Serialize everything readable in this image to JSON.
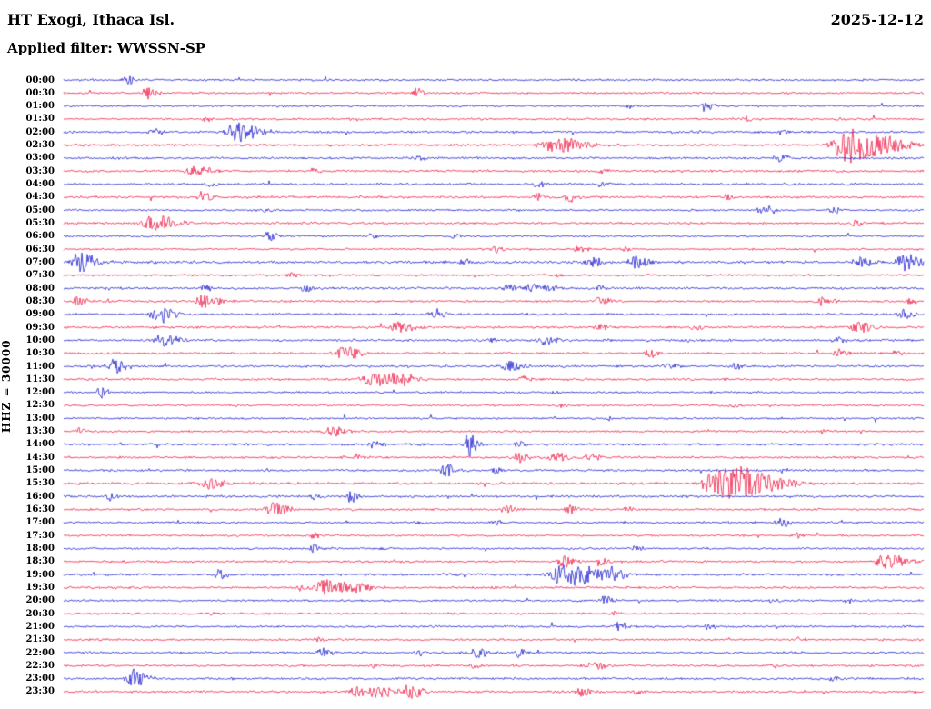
{
  "header": {
    "station_title": "HT Exogi, Ithaca Isl.",
    "date": "2025-12-12",
    "filter_label": "Applied filter: WWSSN-SP"
  },
  "axis": {
    "scale_label": "HHZ = 30000"
  },
  "palette": {
    "blue": "#1212cc",
    "red": "#ee0f3c",
    "text": "#000000",
    "background": "#ffffff"
  },
  "chart_data": {
    "type": "line",
    "title": "24-hour helicorder seismogram, HT Exogi, Ithaca Isl., 2025-12-12",
    "channel": "HHZ",
    "scale": 30000,
    "filter": "WWSSN-SP",
    "row_duration_minutes": 30,
    "color_rule": "rows alternate blue (:00) and red (:30)",
    "event_format": "[center_x_px, amplitude_px, rise_width, decay_width]",
    "rows": [
      {
        "t": "00:00",
        "color": "blue",
        "noise": 0.8,
        "events": [
          [
            140,
            7,
            2,
            4
          ]
        ]
      },
      {
        "t": "00:30",
        "color": "red",
        "noise": 0.8,
        "events": [
          [
            162,
            9,
            2,
            5
          ],
          [
            458,
            6,
            2,
            4
          ]
        ]
      },
      {
        "t": "01:00",
        "color": "blue",
        "noise": 0.8,
        "events": [
          [
            690,
            3,
            2,
            4
          ],
          [
            775,
            7,
            2,
            5
          ]
        ]
      },
      {
        "t": "01:30",
        "color": "red",
        "noise": 0.8,
        "events": [
          [
            225,
            3,
            2,
            4
          ],
          [
            820,
            4,
            2,
            4
          ],
          [
            920,
            3,
            2,
            4
          ]
        ]
      },
      {
        "t": "02:00",
        "color": "blue",
        "noise": 0.9,
        "events": [
          [
            170,
            5,
            2,
            4
          ],
          [
            262,
            11,
            6,
            12
          ],
          [
            860,
            3,
            2,
            4
          ]
        ]
      },
      {
        "t": "02:30",
        "color": "red",
        "noise": 1.0,
        "events": [
          [
            610,
            9,
            7,
            16
          ],
          [
            930,
            20,
            6,
            25
          ]
        ]
      },
      {
        "t": "03:00",
        "color": "blue",
        "noise": 0.9,
        "events": [
          [
            460,
            3,
            2,
            4
          ],
          [
            855,
            5,
            2,
            5
          ]
        ]
      },
      {
        "t": "03:30",
        "color": "red",
        "noise": 0.9,
        "events": [
          [
            215,
            6,
            5,
            10
          ],
          [
            345,
            3,
            2,
            4
          ],
          [
            660,
            3,
            2,
            4
          ]
        ]
      },
      {
        "t": "04:00",
        "color": "blue",
        "noise": 0.9,
        "events": [
          [
            230,
            4,
            2,
            5
          ],
          [
            590,
            4,
            2,
            5
          ],
          [
            660,
            3,
            2,
            4
          ]
        ]
      },
      {
        "t": "04:30",
        "color": "red",
        "noise": 0.9,
        "events": [
          [
            225,
            7,
            3,
            6
          ],
          [
            590,
            5,
            2,
            5
          ],
          [
            625,
            6,
            2,
            5
          ],
          [
            800,
            4,
            2,
            4
          ]
        ]
      },
      {
        "t": "05:00",
        "color": "blue",
        "noise": 0.8,
        "events": [
          [
            290,
            3,
            2,
            4
          ],
          [
            840,
            6,
            3,
            6
          ],
          [
            915,
            4,
            2,
            4
          ]
        ]
      },
      {
        "t": "05:30",
        "color": "red",
        "noise": 0.9,
        "events": [
          [
            170,
            9,
            6,
            12
          ],
          [
            940,
            4,
            2,
            5
          ]
        ]
      },
      {
        "t": "06:00",
        "color": "blue",
        "noise": 0.8,
        "events": [
          [
            295,
            6,
            2,
            5
          ],
          [
            410,
            3,
            2,
            4
          ],
          [
            500,
            3,
            2,
            4
          ]
        ]
      },
      {
        "t": "06:30",
        "color": "red",
        "noise": 0.8,
        "events": [
          [
            545,
            4,
            2,
            5
          ],
          [
            635,
            5,
            2,
            5
          ],
          [
            685,
            3,
            2,
            4
          ]
        ]
      },
      {
        "t": "07:00",
        "color": "blue",
        "noise": 1.1,
        "events": [
          [
            85,
            12,
            4,
            10
          ],
          [
            510,
            4,
            2,
            4
          ],
          [
            650,
            6,
            3,
            6
          ],
          [
            700,
            7,
            4,
            8
          ],
          [
            945,
            7,
            4,
            8
          ],
          [
            995,
            11,
            4,
            9
          ]
        ]
      },
      {
        "t": "07:30",
        "color": "red",
        "noise": 0.9,
        "events": [
          [
            320,
            3,
            2,
            4
          ],
          [
            610,
            3,
            2,
            4
          ]
        ]
      },
      {
        "t": "08:00",
        "color": "blue",
        "noise": 0.9,
        "events": [
          [
            225,
            5,
            2,
            4
          ],
          [
            335,
            6,
            2,
            4
          ],
          [
            560,
            5,
            3,
            6
          ],
          [
            585,
            5,
            3,
            6
          ],
          [
            605,
            4,
            2,
            5
          ],
          [
            660,
            4,
            2,
            4
          ]
        ]
      },
      {
        "t": "08:30",
        "color": "red",
        "noise": 0.9,
        "events": [
          [
            85,
            6,
            2,
            5
          ],
          [
            225,
            8,
            4,
            8
          ],
          [
            660,
            7,
            3,
            6
          ],
          [
            905,
            6,
            3,
            6
          ],
          [
            1002,
            4,
            2,
            4
          ]
        ]
      },
      {
        "t": "09:00",
        "color": "blue",
        "noise": 0.9,
        "events": [
          [
            175,
            9,
            4,
            9
          ],
          [
            480,
            6,
            3,
            5
          ],
          [
            995,
            6,
            3,
            6
          ]
        ]
      },
      {
        "t": "09:30",
        "color": "red",
        "noise": 0.9,
        "events": [
          [
            440,
            7,
            5,
            9
          ],
          [
            660,
            5,
            2,
            5
          ],
          [
            765,
            4,
            2,
            4
          ],
          [
            945,
            6,
            4,
            8
          ]
        ]
      },
      {
        "t": "10:00",
        "color": "blue",
        "noise": 0.9,
        "events": [
          [
            180,
            7,
            5,
            9
          ],
          [
            540,
            4,
            2,
            4
          ],
          [
            600,
            6,
            4,
            7
          ],
          [
            755,
            3,
            2,
            4
          ],
          [
            920,
            4,
            2,
            4
          ]
        ]
      },
      {
        "t": "10:30",
        "color": "red",
        "noise": 0.9,
        "events": [
          [
            380,
            8,
            5,
            8
          ],
          [
            715,
            5,
            3,
            5
          ],
          [
            920,
            5,
            2,
            5
          ],
          [
            985,
            4,
            2,
            4
          ]
        ]
      },
      {
        "t": "11:00",
        "color": "blue",
        "noise": 0.9,
        "events": [
          [
            125,
            7,
            4,
            8
          ],
          [
            560,
            6,
            4,
            8
          ],
          [
            735,
            5,
            3,
            5
          ],
          [
            810,
            4,
            2,
            4
          ]
        ]
      },
      {
        "t": "11:30",
        "color": "red",
        "noise": 0.9,
        "events": [
          [
            408,
            8,
            6,
            10
          ],
          [
            438,
            7,
            5,
            10
          ],
          [
            575,
            4,
            2,
            4
          ]
        ]
      },
      {
        "t": "12:00",
        "color": "blue",
        "noise": 0.8,
        "events": [
          [
            110,
            6,
            2,
            5
          ],
          [
            610,
            2,
            2,
            4
          ]
        ]
      },
      {
        "t": "12:30",
        "color": "red",
        "noise": 0.8,
        "events": [
          [
            615,
            3,
            2,
            4
          ],
          [
            805,
            3,
            2,
            4
          ]
        ]
      },
      {
        "t": "13:00",
        "color": "blue",
        "noise": 0.8,
        "events": [
          [
            670,
            3,
            2,
            4
          ],
          [
            855,
            3,
            2,
            4
          ]
        ]
      },
      {
        "t": "13:30",
        "color": "red",
        "noise": 0.8,
        "events": [
          [
            88,
            4,
            2,
            4
          ],
          [
            365,
            6,
            4,
            7
          ],
          [
            905,
            3,
            2,
            4
          ]
        ]
      },
      {
        "t": "14:00",
        "color": "blue",
        "noise": 0.9,
        "events": [
          [
            410,
            5,
            2,
            5
          ],
          [
            515,
            13,
            2,
            5
          ],
          [
            570,
            4,
            2,
            4
          ]
        ]
      },
      {
        "t": "14:30",
        "color": "red",
        "noise": 0.9,
        "events": [
          [
            390,
            4,
            2,
            4
          ],
          [
            570,
            6,
            4,
            6
          ],
          [
            612,
            6,
            4,
            8
          ],
          [
            650,
            5,
            3,
            6
          ]
        ]
      },
      {
        "t": "15:00",
        "color": "blue",
        "noise": 0.9,
        "events": [
          [
            490,
            7,
            3,
            6
          ],
          [
            545,
            4,
            2,
            4
          ],
          [
            860,
            3,
            2,
            4
          ]
        ]
      },
      {
        "t": "15:30",
        "color": "red",
        "noise": 1.0,
        "events": [
          [
            230,
            7,
            4,
            8
          ],
          [
            790,
            18,
            7,
            14
          ],
          [
            822,
            11,
            8,
            22
          ]
        ]
      },
      {
        "t": "16:00",
        "color": "blue",
        "noise": 0.9,
        "events": [
          [
            120,
            4,
            2,
            4
          ],
          [
            345,
            4,
            2,
            4
          ],
          [
            385,
            8,
            2,
            5
          ]
        ]
      },
      {
        "t": "16:30",
        "color": "red",
        "noise": 0.9,
        "events": [
          [
            300,
            7,
            4,
            8
          ],
          [
            555,
            5,
            2,
            5
          ],
          [
            625,
            5,
            2,
            5
          ],
          [
            690,
            3,
            2,
            4
          ]
        ]
      },
      {
        "t": "17:00",
        "color": "blue",
        "noise": 0.8,
        "events": [
          [
            460,
            3,
            2,
            4
          ],
          [
            545,
            3,
            2,
            4
          ],
          [
            860,
            6,
            3,
            5
          ]
        ]
      },
      {
        "t": "17:30",
        "color": "red",
        "noise": 0.8,
        "events": [
          [
            345,
            3,
            2,
            4
          ],
          [
            875,
            4,
            2,
            4
          ]
        ]
      },
      {
        "t": "18:00",
        "color": "blue",
        "noise": 0.8,
        "events": [
          [
            345,
            5,
            2,
            5
          ],
          [
            420,
            3,
            2,
            4
          ],
          [
            700,
            3,
            2,
            4
          ]
        ]
      },
      {
        "t": "18:30",
        "color": "red",
        "noise": 0.9,
        "events": [
          [
            620,
            7,
            3,
            6
          ],
          [
            660,
            5,
            2,
            5
          ],
          [
            975,
            9,
            5,
            11
          ]
        ]
      },
      {
        "t": "19:00",
        "color": "blue",
        "noise": 1.0,
        "events": [
          [
            240,
            6,
            2,
            5
          ],
          [
            615,
            12,
            5,
            10
          ],
          [
            640,
            9,
            5,
            13
          ],
          [
            672,
            6,
            3,
            8
          ]
        ]
      },
      {
        "t": "19:30",
        "color": "red",
        "noise": 0.9,
        "events": [
          [
            330,
            4,
            2,
            4
          ],
          [
            358,
            9,
            5,
            8
          ],
          [
            382,
            7,
            4,
            11
          ]
        ]
      },
      {
        "t": "20:00",
        "color": "blue",
        "noise": 0.8,
        "events": [
          [
            665,
            6,
            3,
            5
          ],
          [
            850,
            3,
            2,
            4
          ],
          [
            930,
            3,
            2,
            4
          ]
        ]
      },
      {
        "t": "20:30",
        "color": "red",
        "noise": 0.8,
        "events": [
          [
            230,
            2,
            2,
            4
          ],
          [
            675,
            3,
            2,
            4
          ]
        ]
      },
      {
        "t": "21:00",
        "color": "blue",
        "noise": 0.8,
        "events": [
          [
            680,
            6,
            3,
            5
          ],
          [
            780,
            4,
            2,
            4
          ]
        ]
      },
      {
        "t": "21:30",
        "color": "red",
        "noise": 0.8,
        "events": [
          [
            350,
            3,
            2,
            4
          ],
          [
            880,
            4,
            2,
            4
          ]
        ]
      },
      {
        "t": "22:00",
        "color": "blue",
        "noise": 0.9,
        "events": [
          [
            355,
            6,
            3,
            5
          ],
          [
            460,
            5,
            2,
            4
          ],
          [
            525,
            6,
            3,
            5
          ],
          [
            570,
            5,
            2,
            4
          ]
        ]
      },
      {
        "t": "22:30",
        "color": "red",
        "noise": 0.9,
        "events": [
          [
            410,
            3,
            2,
            4
          ],
          [
            520,
            3,
            2,
            4
          ],
          [
            655,
            6,
            3,
            6
          ],
          [
            850,
            3,
            2,
            4
          ]
        ]
      },
      {
        "t": "23:00",
        "color": "blue",
        "noise": 0.9,
        "events": [
          [
            145,
            10,
            3,
            9
          ],
          [
            915,
            3,
            2,
            4
          ]
        ]
      },
      {
        "t": "23:30",
        "color": "red",
        "noise": 0.9,
        "events": [
          [
            390,
            6,
            3,
            5
          ],
          [
            415,
            9,
            4,
            7
          ],
          [
            450,
            8,
            4,
            8
          ],
          [
            640,
            6,
            3,
            6
          ],
          [
            700,
            4,
            2,
            4
          ]
        ]
      }
    ]
  }
}
